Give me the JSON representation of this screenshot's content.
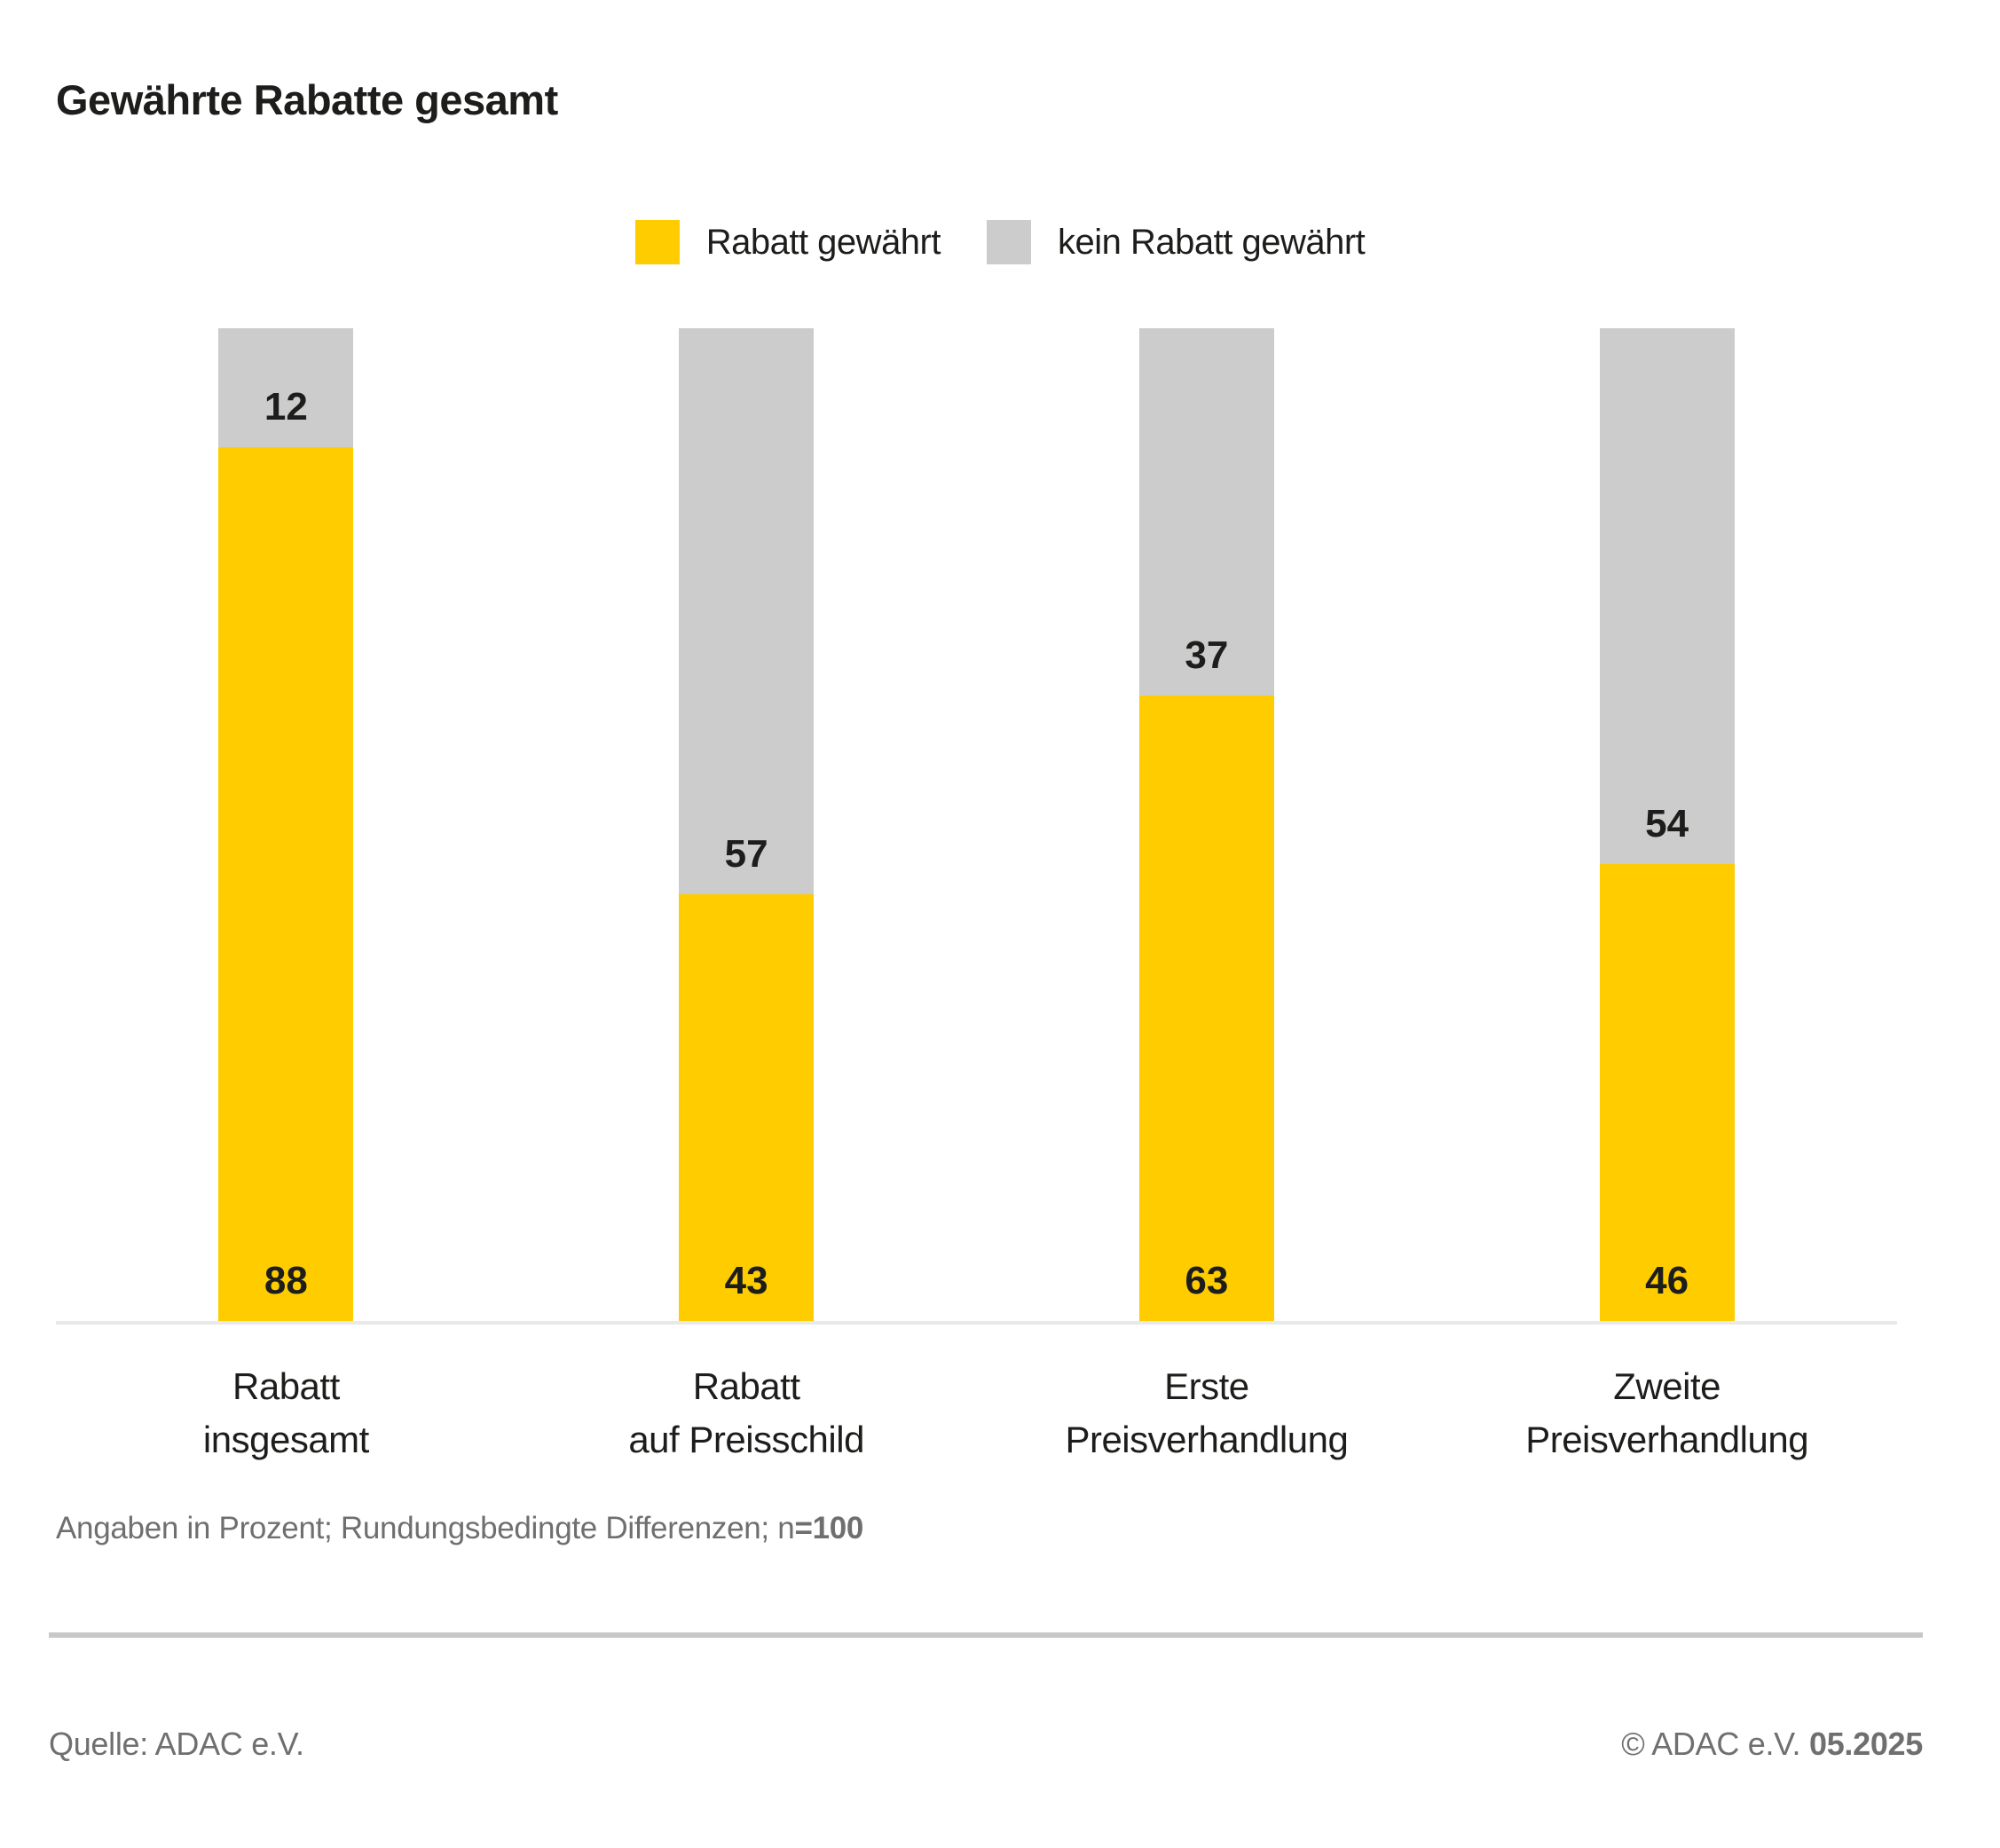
{
  "title": "Gewährte Rabatte gesamt",
  "colors": {
    "yellow": "#FFCC00",
    "gray": "#CCCCCC",
    "axis": "#E9E9E9",
    "divider": "#C8C8C8",
    "text_dark": "#1D1D1B",
    "text_gray": "#706F6F"
  },
  "legend": {
    "items": [
      {
        "label": "Rabatt gewährt",
        "color": "#FFCC00"
      },
      {
        "label": "kein Rabatt gewährt",
        "color": "#CCCCCC"
      }
    ]
  },
  "chart_data": {
    "type": "bar",
    "stacked": true,
    "orientation": "vertical",
    "title": "Gewährte Rabatte gesamt",
    "unit": "percent",
    "ylim": [
      0,
      100
    ],
    "grid": false,
    "legend_position": "top-center",
    "value_labels": "inside-bottom-of-segment",
    "categories": [
      "Rabatt insgesamt",
      "Rabatt auf Preisschild",
      "Erste Preisverhandlung",
      "Zweite Preisverhandlung"
    ],
    "category_lines": [
      "Rabatt\ninsgesamt",
      "Rabatt\nauf Preisschild",
      "Erste\nPreisverhandlung",
      "Zweite\nPreisverhandlung"
    ],
    "series": [
      {
        "name": "Rabatt gewährt",
        "color": "#FFCC00",
        "values": [
          88,
          43,
          63,
          46
        ]
      },
      {
        "name": "kein Rabatt gewährt",
        "color": "#CCCCCC",
        "values": [
          12,
          57,
          37,
          54
        ]
      }
    ]
  },
  "footnote": {
    "full": "Angaben in Prozent; Rundungsbedingte Differenzen; n=100",
    "regular": "Angaben in Prozent; Rundungsbedingte Differenzen; n",
    "bold": "=100"
  },
  "footer": {
    "source": "Quelle: ADAC e.V.",
    "copyright_full": "© ADAC e.V. 05.2025",
    "copyright_prefix": "© ADAC e.V. ",
    "copyright_date": "05.2025"
  }
}
